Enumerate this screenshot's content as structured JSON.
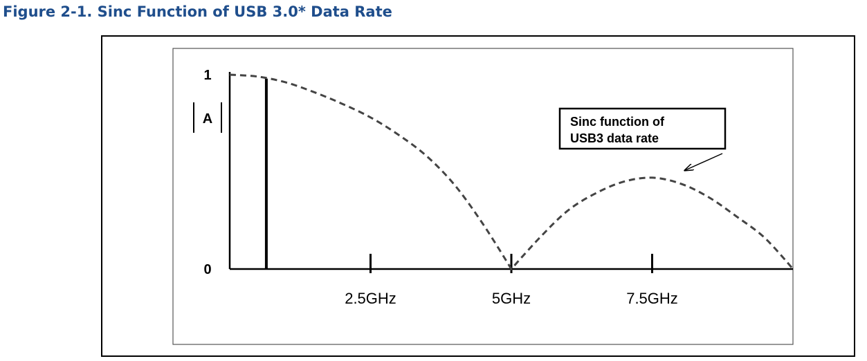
{
  "figure": {
    "title": "Figure 2-1. Sinc Function of USB 3.0* Data Rate"
  },
  "chart_data": {
    "type": "line",
    "title": "",
    "xlabel": "",
    "ylabel": "|A|",
    "xlim": [
      0,
      10
    ],
    "ylim": [
      0,
      1
    ],
    "x_ticks": [
      {
        "value": 2.5,
        "label": "2.5GHz"
      },
      {
        "value": 5,
        "label": "5GHz"
      },
      {
        "value": 7.5,
        "label": "7.5GHz"
      }
    ],
    "y_ticks": [
      {
        "value": 0,
        "label": "0"
      },
      {
        "value": 1,
        "label": "1"
      }
    ],
    "ylabel_parts": {
      "left": "|",
      "middle": "A",
      "right": "|"
    },
    "marker_line": {
      "x": 0.65,
      "value": 0.98
    },
    "series": [
      {
        "name": "",
        "style": "dashed",
        "color": "#444444",
        "x": [
          0,
          0.5,
          1,
          1.5,
          2,
          2.5,
          3,
          3.5,
          4,
          4.5,
          5,
          5.5,
          6,
          6.5,
          7,
          7.5,
          8,
          8.5,
          9,
          9.5,
          10
        ],
        "y": [
          1.0,
          0.99,
          0.96,
          0.91,
          0.85,
          0.78,
          0.69,
          0.58,
          0.43,
          0.23,
          0.0,
          0.16,
          0.3,
          0.39,
          0.45,
          0.47,
          0.44,
          0.37,
          0.27,
          0.16,
          0.0
        ]
      }
    ],
    "annotations": [
      {
        "text_lines": [
          "Sinc function of",
          "USB3 data rate"
        ],
        "points_to": {
          "x": 8.1,
          "y": 0.5
        }
      }
    ],
    "grid": false,
    "legend": "none"
  }
}
